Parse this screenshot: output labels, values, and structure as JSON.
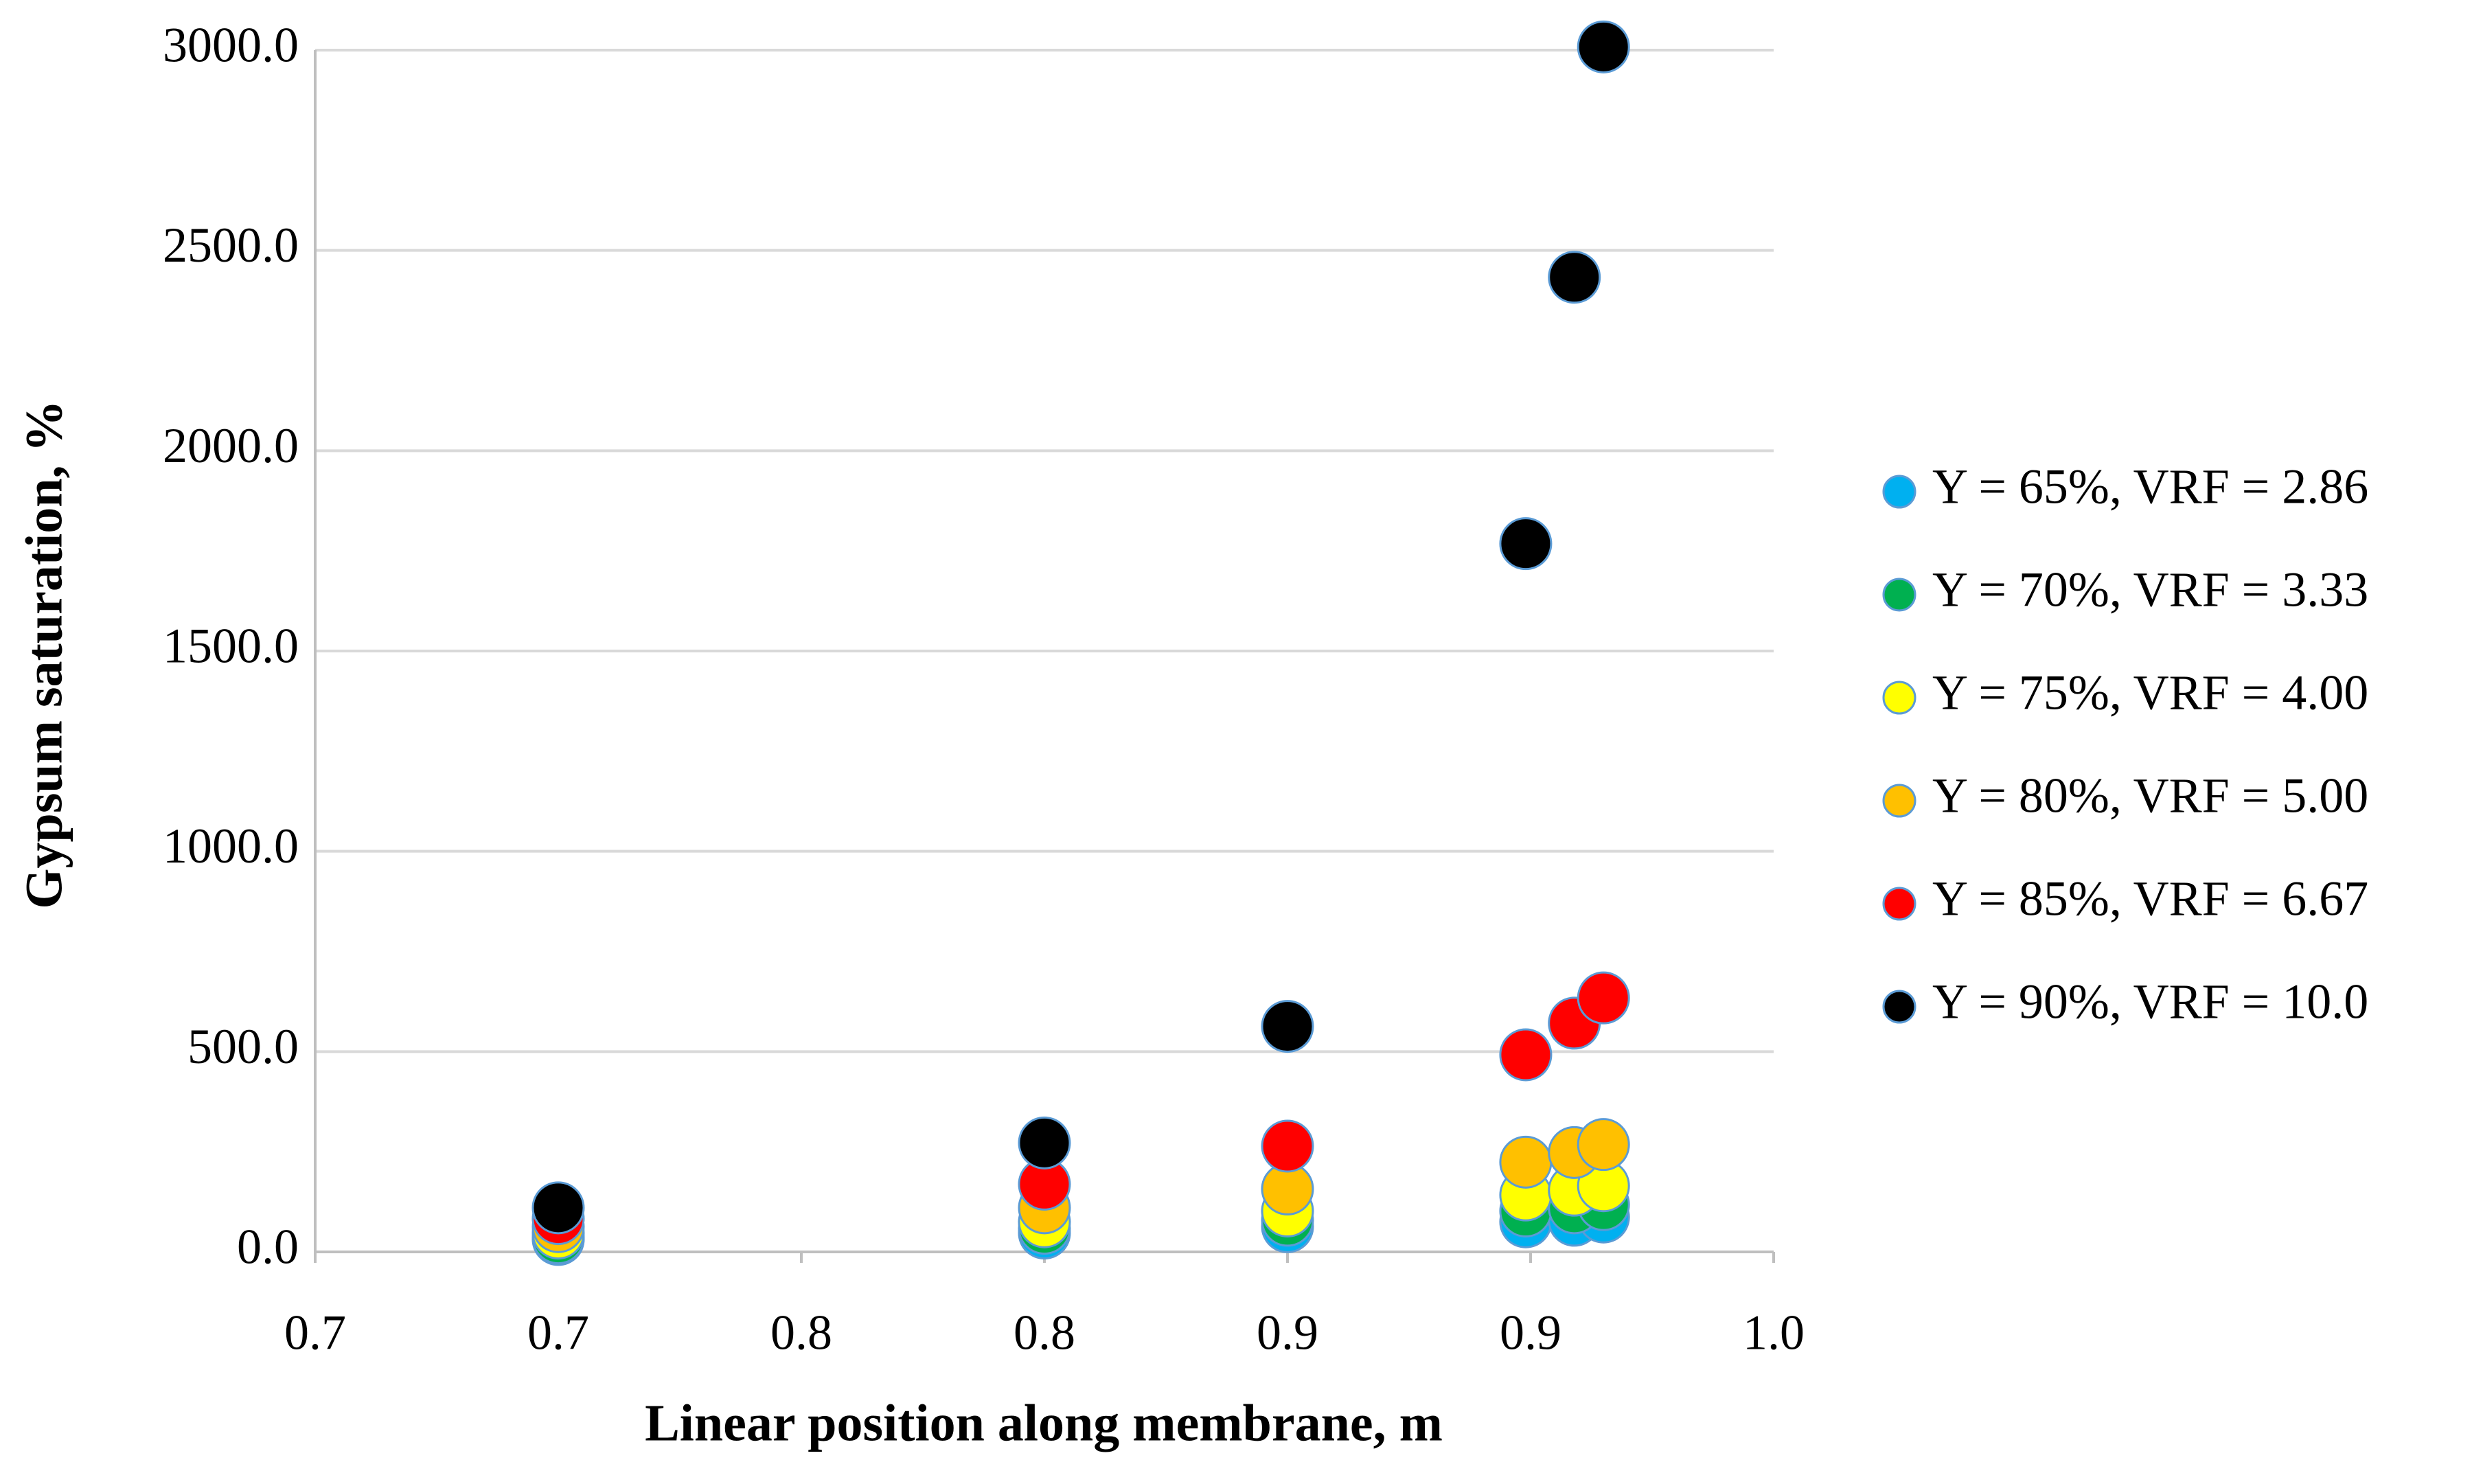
{
  "chart_data": {
    "type": "scatter",
    "xlabel": "Linear position along membrane, m",
    "ylabel": "Gypsum saturation, %",
    "x": [
      0.7,
      0.8,
      0.85,
      0.899,
      0.909,
      0.915
    ],
    "xlim": [
      0.65,
      0.95
    ],
    "xticks": [
      {
        "value": 0.65,
        "label": "0.7"
      },
      {
        "value": 0.7,
        "label": "0.7"
      },
      {
        "value": 0.75,
        "label": "0.8"
      },
      {
        "value": 0.8,
        "label": "0.8"
      },
      {
        "value": 0.85,
        "label": "0.9"
      },
      {
        "value": 0.9,
        "label": "0.9"
      },
      {
        "value": 0.95,
        "label": "1.0"
      }
    ],
    "ylim": [
      0,
      3000
    ],
    "yticks": [
      {
        "value": 0,
        "label": "0.0"
      },
      {
        "value": 500,
        "label": "500.0"
      },
      {
        "value": 1000,
        "label": "1000.0"
      },
      {
        "value": 1500,
        "label": "1500.0"
      },
      {
        "value": 2000,
        "label": "2000.0"
      },
      {
        "value": 2500,
        "label": "2500.0"
      },
      {
        "value": 3000,
        "label": "3000.0"
      }
    ],
    "grid": true,
    "legend": "right",
    "series": [
      {
        "name": "Y = 65%, VRF = 2.86",
        "color": "#00b0f0",
        "values": [
          31,
          47,
          63,
          75,
          79,
          87
        ]
      },
      {
        "name": "Y = 70%, VRF = 3.33",
        "color": "#00b050",
        "values": [
          35,
          59,
          79,
          102,
          110,
          118
        ]
      },
      {
        "name": "Y = 75%, VRF = 4.00",
        "color": "#ffff00",
        "values": [
          47,
          75,
          102,
          142,
          154,
          165
        ]
      },
      {
        "name": "Y = 80%, VRF = 5.00",
        "color": "#ffc000",
        "values": [
          63,
          110,
          157,
          224,
          248,
          268
        ]
      },
      {
        "name": "Y = 85%, VRF = 6.67",
        "color": "#ff0000",
        "values": [
          83,
          169,
          264,
          492,
          571,
          634
        ]
      },
      {
        "name": "Y = 90%, VRF = 10.0",
        "color": "#000000",
        "values": [
          110,
          272,
          563,
          1768,
          2433,
          3008
        ]
      }
    ]
  }
}
